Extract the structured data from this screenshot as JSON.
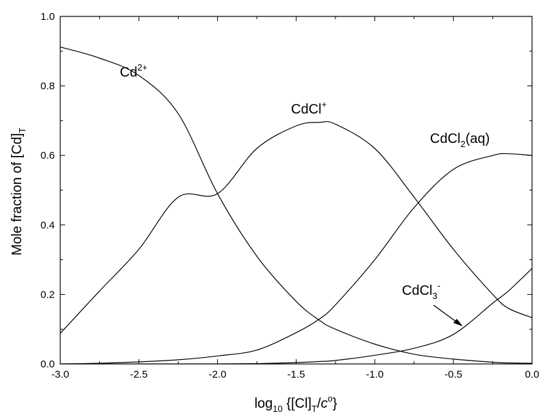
{
  "chart_data": {
    "type": "line",
    "xlabel": {
      "main": "log",
      "sub10": "10",
      "open": " {[Cl]",
      "subT": "T",
      "slash": "/",
      "c": "c",
      "supo": "o",
      "close": "}"
    },
    "ylabel": {
      "main": "Mole fraction of [Cd]",
      "subT": "T"
    },
    "xlim": [
      -3.0,
      0.0
    ],
    "ylim": [
      0.0,
      1.0
    ],
    "x_ticks": [
      "-3.0",
      "-2.5",
      "-2.0",
      "-1.5",
      "-1.0",
      "-0.5",
      "0.0"
    ],
    "x_tick_values": [
      -3.0,
      -2.5,
      -2.0,
      -1.5,
      -1.0,
      -0.5,
      0.0
    ],
    "y_ticks": [
      "0.0",
      "0.2",
      "0.4",
      "0.6",
      "0.8",
      "1.0"
    ],
    "y_tick_values": [
      0.0,
      0.2,
      0.4,
      0.6,
      0.8,
      1.0
    ],
    "grid": false,
    "x": [
      -3.0,
      -2.75,
      -2.5,
      -2.25,
      -2.0,
      -1.75,
      -1.5,
      -1.35,
      -1.25,
      -1.0,
      -0.75,
      -0.5,
      -0.25,
      -0.15,
      0.0
    ],
    "series": [
      {
        "key": "cd2",
        "label": {
          "base": "Cd",
          "sup": "2+",
          "sub": ""
        },
        "values": [
          0.912,
          0.88,
          0.83,
          0.72,
          0.49,
          0.31,
          0.18,
          0.125,
          0.1,
          0.057,
          0.028,
          0.014,
          0.005,
          0.003,
          0.002
        ]
      },
      {
        "key": "cdcl",
        "label": {
          "base": "CdCl",
          "sup": "+",
          "sub": ""
        },
        "values": [
          0.088,
          0.21,
          0.33,
          0.48,
          0.49,
          0.62,
          0.685,
          0.695,
          0.69,
          0.62,
          0.48,
          0.33,
          0.2,
          0.16,
          0.133
        ]
      },
      {
        "key": "cdcl2",
        "label": {
          "base": "CdCl",
          "sup": "",
          "sub": "2",
          "tail": "(aq)"
        },
        "values": [
          0.0,
          0.002,
          0.006,
          0.012,
          0.023,
          0.04,
          0.09,
          0.13,
          0.17,
          0.3,
          0.45,
          0.56,
          0.6,
          0.605,
          0.6
        ]
      },
      {
        "key": "cdcl3",
        "label": {
          "base": "CdCl",
          "sup": "-",
          "sub": "3"
        },
        "values": [
          0.0,
          0.0,
          0.0,
          0.0,
          0.0,
          0.001,
          0.004,
          0.007,
          0.01,
          0.025,
          0.045,
          0.085,
          0.175,
          0.21,
          0.275
        ]
      }
    ]
  }
}
